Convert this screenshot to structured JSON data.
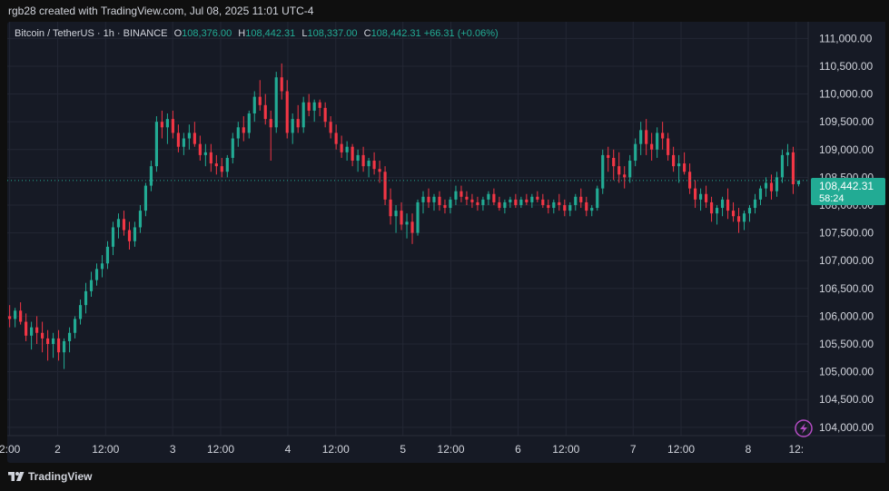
{
  "attribution": "rgb28 created with TradingView.com, Jul 08, 2025 11:01 UTC-4",
  "legend": {
    "symbol": "Bitcoin / TetherUS · 1h · BINANCE",
    "o_label": "O",
    "o_value": "108,376.00",
    "h_label": "H",
    "h_value": "108,442.31",
    "l_label": "L",
    "l_value": "108,337.00",
    "c_label": "C",
    "c_value": "108,442.31",
    "change": "+66.31 (+0.06%)"
  },
  "price_tag": {
    "price": "108,442.31",
    "countdown": "58:24"
  },
  "brand": "TradingView",
  "colors": {
    "up": "#22ab94",
    "down": "#f23645",
    "background": "#161a25",
    "grid": "#232734",
    "text": "#d1d4dc"
  },
  "icons": {
    "alert": "lightning-icon",
    "logo": "tradingview-logo"
  },
  "chart_data": {
    "type": "candlestick",
    "y_ticks": [
      "111,000.00",
      "110,500.00",
      "110,000.00",
      "109,500.00",
      "109,000.00",
      "108,500.00",
      "108,000.00",
      "107,500.00",
      "107,000.00",
      "106,500.00",
      "106,000.00",
      "105,500.00",
      "105,000.00",
      "104,500.00",
      "104,000.00"
    ],
    "y_range": [
      103850,
      111300
    ],
    "x_ticks": [
      {
        "label": "2:00",
        "t": -14
      },
      {
        "label": "2",
        "t": -4
      },
      {
        "label": "12:00",
        "t": 6
      },
      {
        "label": "3",
        "t": 20
      },
      {
        "label": "12:00",
        "t": 30
      },
      {
        "label": "4",
        "t": 44
      },
      {
        "label": "12:00",
        "t": 54
      },
      {
        "label": "5",
        "t": 68
      },
      {
        "label": "12:00",
        "t": 78
      },
      {
        "label": "6",
        "t": 92
      },
      {
        "label": "12:00",
        "t": 102
      },
      {
        "label": "7",
        "t": 116
      },
      {
        "label": "12:00",
        "t": 126
      },
      {
        "label": "8",
        "t": 140
      },
      {
        "label": "12:",
        "t": 150
      }
    ],
    "x_range": [
      -14.5,
      152.5
    ],
    "last_price": 108442.31,
    "candles": [
      [
        106000,
        106200,
        105800,
        105950
      ],
      [
        105950,
        106150,
        105800,
        106100
      ],
      [
        106100,
        106250,
        105850,
        105900
      ],
      [
        105900,
        106050,
        105550,
        105650
      ],
      [
        105650,
        105900,
        105400,
        105800
      ],
      [
        105800,
        106000,
        105500,
        105700
      ],
      [
        105700,
        105900,
        105350,
        105600
      ],
      [
        105600,
        105750,
        105200,
        105500
      ],
      [
        105500,
        105700,
        105250,
        105600
      ],
      [
        105600,
        105750,
        105200,
        105350
      ],
      [
        105350,
        105600,
        105050,
        105550
      ],
      [
        105550,
        105800,
        105350,
        105700
      ],
      [
        105700,
        106000,
        105600,
        105950
      ],
      [
        105950,
        106300,
        105850,
        106200
      ],
      [
        106200,
        106600,
        106050,
        106450
      ],
      [
        106450,
        106800,
        106350,
        106650
      ],
      [
        106650,
        106950,
        106550,
        106850
      ],
      [
        106850,
        107100,
        106700,
        106950
      ],
      [
        106950,
        107350,
        106850,
        107250
      ],
      [
        107250,
        107700,
        107100,
        107600
      ],
      [
        107600,
        107850,
        107400,
        107750
      ],
      [
        107750,
        107900,
        107450,
        107550
      ],
      [
        107550,
        107700,
        107200,
        107350
      ],
      [
        107350,
        107700,
        107250,
        107600
      ],
      [
        107600,
        108000,
        107500,
        107900
      ],
      [
        107900,
        108400,
        107800,
        108350
      ],
      [
        108350,
        108800,
        108250,
        108700
      ],
      [
        108700,
        109600,
        108600,
        109500
      ],
      [
        109500,
        109700,
        109200,
        109400
      ],
      [
        109400,
        109650,
        109100,
        109550
      ],
      [
        109550,
        109700,
        109200,
        109300
      ],
      [
        109300,
        109450,
        108950,
        109050
      ],
      [
        109050,
        109300,
        108900,
        109200
      ],
      [
        109200,
        109450,
        109000,
        109300
      ],
      [
        109300,
        109500,
        109050,
        109100
      ],
      [
        109100,
        109250,
        108800,
        108900
      ],
      [
        108900,
        109100,
        108700,
        108950
      ],
      [
        108950,
        109100,
        108600,
        108750
      ],
      [
        108750,
        108900,
        108550,
        108700
      ],
      [
        108700,
        108850,
        108500,
        108600
      ],
      [
        108600,
        108900,
        108500,
        108850
      ],
      [
        108850,
        109300,
        108750,
        109200
      ],
      [
        109200,
        109500,
        109050,
        109400
      ],
      [
        109400,
        109600,
        109150,
        109300
      ],
      [
        109300,
        109700,
        109200,
        109650
      ],
      [
        109650,
        110050,
        109500,
        109950
      ],
      [
        109950,
        110250,
        109700,
        109800
      ],
      [
        109800,
        110000,
        109450,
        109550
      ],
      [
        109550,
        109700,
        108800,
        109400
      ],
      [
        109400,
        110400,
        109300,
        110300
      ],
      [
        110300,
        110550,
        109900,
        110050
      ],
      [
        110050,
        110250,
        109200,
        109300
      ],
      [
        109300,
        109650,
        109100,
        109550
      ],
      [
        109550,
        109800,
        109300,
        109400
      ],
      [
        109400,
        109950,
        109300,
        109850
      ],
      [
        109850,
        110000,
        109600,
        109700
      ],
      [
        109700,
        109900,
        109500,
        109850
      ],
      [
        109850,
        109900,
        109600,
        109750
      ],
      [
        109750,
        109850,
        109400,
        109500
      ],
      [
        109500,
        109600,
        109200,
        109300
      ],
      [
        109300,
        109450,
        109000,
        109100
      ],
      [
        109100,
        109250,
        108850,
        108950
      ],
      [
        108950,
        109150,
        108800,
        109050
      ],
      [
        109050,
        109100,
        108700,
        108800
      ],
      [
        108800,
        109000,
        108600,
        108900
      ],
      [
        108900,
        109050,
        108600,
        108700
      ],
      [
        108700,
        108850,
        108500,
        108800
      ],
      [
        108800,
        108950,
        108550,
        108650
      ],
      [
        108650,
        108800,
        108400,
        108600
      ],
      [
        108600,
        108700,
        108000,
        108100
      ],
      [
        108100,
        108300,
        107650,
        107800
      ],
      [
        107800,
        108000,
        107500,
        107900
      ],
      [
        107900,
        108050,
        107550,
        107650
      ],
      [
        107650,
        107850,
        107400,
        107700
      ],
      [
        107700,
        107850,
        107300,
        107500
      ],
      [
        107500,
        108100,
        107450,
        108050
      ],
      [
        108050,
        108250,
        107850,
        108150
      ],
      [
        108150,
        108300,
        107950,
        108050
      ],
      [
        108050,
        108200,
        107900,
        108150
      ],
      [
        108150,
        108250,
        107900,
        108000
      ],
      [
        108000,
        108100,
        107850,
        107950
      ],
      [
        107950,
        108150,
        107850,
        108100
      ],
      [
        108100,
        108350,
        108000,
        108250
      ],
      [
        108250,
        108350,
        108050,
        108150
      ],
      [
        108150,
        108250,
        108000,
        108100
      ],
      [
        108100,
        108200,
        107950,
        108050
      ],
      [
        108050,
        108150,
        107900,
        108000
      ],
      [
        108000,
        108150,
        107900,
        108100
      ],
      [
        108100,
        108250,
        108000,
        108200
      ],
      [
        108200,
        108300,
        108000,
        108050
      ],
      [
        108050,
        108150,
        107900,
        107950
      ],
      [
        107950,
        108100,
        107850,
        108050
      ],
      [
        108050,
        108150,
        107950,
        108100
      ],
      [
        108100,
        108200,
        107950,
        108000
      ],
      [
        108000,
        108150,
        107950,
        108100
      ],
      [
        108100,
        108200,
        108000,
        108050
      ],
      [
        108050,
        108200,
        107950,
        108150
      ],
      [
        108150,
        108250,
        108050,
        108100
      ],
      [
        108100,
        108200,
        107950,
        108000
      ],
      [
        108000,
        108100,
        107850,
        107950
      ],
      [
        107950,
        108100,
        107850,
        108050
      ],
      [
        108050,
        108200,
        107900,
        108000
      ],
      [
        108000,
        108100,
        107800,
        107900
      ],
      [
        107900,
        108050,
        107800,
        108000
      ],
      [
        108000,
        108200,
        107900,
        108150
      ],
      [
        108150,
        108300,
        107950,
        108050
      ],
      [
        108050,
        108150,
        107800,
        107900
      ],
      [
        107900,
        108000,
        107800,
        107950
      ],
      [
        107950,
        108350,
        107900,
        108300
      ],
      [
        108300,
        109000,
        108200,
        108900
      ],
      [
        108900,
        109050,
        108600,
        108850
      ],
      [
        108850,
        109000,
        108450,
        108700
      ],
      [
        108700,
        108950,
        108400,
        108550
      ],
      [
        108550,
        108700,
        108300,
        108500
      ],
      [
        108500,
        108900,
        108400,
        108800
      ],
      [
        108800,
        109200,
        108700,
        109100
      ],
      [
        109100,
        109500,
        108900,
        109350
      ],
      [
        109350,
        109550,
        108900,
        109100
      ],
      [
        109100,
        109300,
        108800,
        109000
      ],
      [
        109000,
        109400,
        108850,
        109300
      ],
      [
        109300,
        109500,
        109000,
        109200
      ],
      [
        109200,
        109300,
        108800,
        108900
      ],
      [
        108900,
        109050,
        108600,
        108700
      ],
      [
        108700,
        108900,
        108400,
        108750
      ],
      [
        108750,
        108950,
        108550,
        108600
      ],
      [
        108600,
        108750,
        108200,
        108300
      ],
      [
        108300,
        108450,
        107950,
        108100
      ],
      [
        108100,
        108300,
        107900,
        108200
      ],
      [
        108200,
        108350,
        107950,
        108050
      ],
      [
        108050,
        108150,
        107700,
        107850
      ],
      [
        107850,
        108000,
        107650,
        107950
      ],
      [
        107950,
        108150,
        107800,
        108100
      ],
      [
        108100,
        108300,
        107750,
        107900
      ],
      [
        107900,
        108050,
        107700,
        107800
      ],
      [
        107800,
        107950,
        107500,
        107700
      ],
      [
        107700,
        107900,
        107550,
        107850
      ],
      [
        107850,
        108000,
        107700,
        107950
      ],
      [
        107950,
        108200,
        107850,
        108100
      ],
      [
        108100,
        108350,
        108000,
        108300
      ],
      [
        108300,
        108500,
        108150,
        108400
      ],
      [
        108400,
        108550,
        108100,
        108250
      ],
      [
        108250,
        108600,
        108150,
        108500
      ],
      [
        108500,
        109000,
        108400,
        108900
      ],
      [
        108900,
        109100,
        108700,
        108950
      ],
      [
        108950,
        109050,
        108200,
        108376
      ],
      [
        108376,
        108442.31,
        108337,
        108442.31
      ]
    ]
  }
}
